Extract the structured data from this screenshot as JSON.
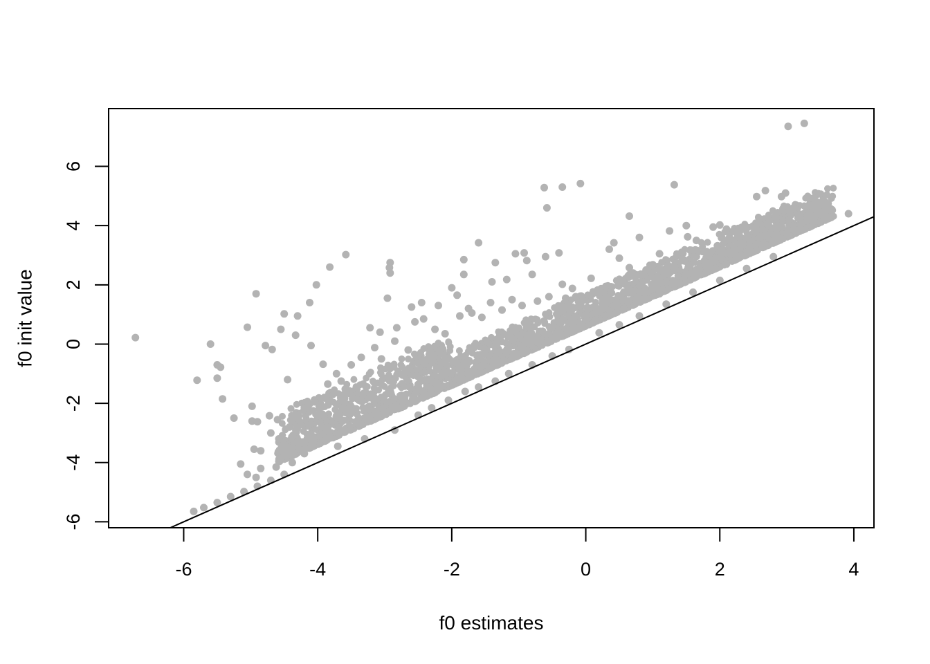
{
  "chart_data": {
    "type": "scatter",
    "title": "",
    "xlabel": "f0 estimates",
    "ylabel": "f0 init value",
    "xlim": [
      -7.12,
      4.3
    ],
    "ylim": [
      -6.2,
      7.95
    ],
    "xticks": [
      -6,
      -4,
      -2,
      0,
      2,
      4
    ],
    "yticks": [
      -6,
      -4,
      -2,
      0,
      2,
      4,
      6
    ],
    "xtick_labels": [
      "-6",
      "-4",
      "-2",
      "0",
      "2",
      "4"
    ],
    "ytick_labels": [
      "-6",
      "-4",
      "-2",
      "0",
      "2",
      "4",
      "6"
    ],
    "grid": false,
    "legend": "none",
    "point_color": "#b3b3b3",
    "reference_line": {
      "type": "identity",
      "slope": 1,
      "intercept": 0,
      "color": "#000000"
    },
    "series": [
      {
        "points": [
          [
            -6.72,
            0.22
          ],
          [
            -5.8,
            -1.22
          ],
          [
            -5.6,
            0.0
          ],
          [
            -5.5,
            -0.7
          ],
          [
            -5.45,
            -0.78
          ],
          [
            -5.5,
            -1.15
          ],
          [
            -5.42,
            -1.85
          ],
          [
            -5.25,
            -2.5
          ],
          [
            -5.05,
            0.57
          ],
          [
            -4.92,
            1.7
          ],
          [
            -4.98,
            -2.1
          ],
          [
            -4.98,
            -2.6
          ],
          [
            -4.9,
            -2.62
          ],
          [
            -4.78,
            -0.05
          ],
          [
            -4.68,
            -0.18
          ],
          [
            -4.55,
            0.5
          ],
          [
            -4.5,
            1.02
          ],
          [
            -4.45,
            -1.2
          ],
          [
            -4.3,
            0.95
          ],
          [
            -4.33,
            0.3
          ],
          [
            -4.12,
            1.4
          ],
          [
            -4.02,
            2.0
          ],
          [
            -4.1,
            -0.05
          ],
          [
            -3.92,
            -0.68
          ],
          [
            -3.82,
            2.6
          ],
          [
            -3.58,
            3.02
          ],
          [
            -3.72,
            -1.0
          ],
          [
            -3.22,
            0.55
          ],
          [
            -3.07,
            0.4
          ],
          [
            -2.96,
            1.55
          ],
          [
            -2.93,
            2.58
          ],
          [
            -2.92,
            2.75
          ],
          [
            -2.92,
            2.4
          ],
          [
            -2.82,
            0.55
          ],
          [
            -2.6,
            1.25
          ],
          [
            -2.45,
            1.4
          ],
          [
            -2.2,
            1.3
          ],
          [
            -2.0,
            1.9
          ],
          [
            -1.82,
            2.35
          ],
          [
            -1.82,
            2.85
          ],
          [
            -1.92,
            1.65
          ],
          [
            -1.75,
            1.2
          ],
          [
            -1.6,
            3.42
          ],
          [
            -1.35,
            2.75
          ],
          [
            -1.4,
            2.1
          ],
          [
            -1.18,
            2.18
          ],
          [
            -1.05,
            3.05
          ],
          [
            -0.92,
            3.08
          ],
          [
            -0.88,
            2.82
          ],
          [
            -0.8,
            2.35
          ],
          [
            -0.6,
            2.95
          ],
          [
            -0.4,
            3.08
          ],
          [
            -0.35,
            2.02
          ],
          [
            -0.2,
            1.88
          ],
          [
            -0.62,
            5.28
          ],
          [
            -0.58,
            4.6
          ],
          [
            -0.35,
            5.3
          ],
          [
            -0.08,
            5.42
          ],
          [
            0.08,
            2.22
          ],
          [
            0.42,
            3.42
          ],
          [
            0.35,
            3.2
          ],
          [
            0.5,
            2.9
          ],
          [
            0.65,
            2.58
          ],
          [
            0.65,
            4.32
          ],
          [
            0.8,
            3.6
          ],
          [
            1.1,
            3.05
          ],
          [
            1.25,
            3.82
          ],
          [
            1.32,
            5.38
          ],
          [
            1.5,
            4.0
          ],
          [
            1.52,
            3.62
          ],
          [
            1.65,
            3.5
          ],
          [
            1.9,
            3.95
          ],
          [
            2.0,
            4.02
          ],
          [
            2.1,
            3.88
          ],
          [
            2.35,
            3.88
          ],
          [
            2.45,
            3.3
          ],
          [
            2.55,
            3.85
          ],
          [
            2.55,
            4.98
          ],
          [
            2.68,
            5.18
          ],
          [
            2.92,
            4.98
          ],
          [
            2.98,
            5.1
          ],
          [
            3.02,
            7.35
          ],
          [
            3.26,
            7.45
          ],
          [
            3.35,
            4.68
          ],
          [
            3.92,
            4.4
          ],
          [
            3.02,
            3.85
          ],
          [
            2.8,
            3.5
          ],
          [
            2.6,
            3.6
          ],
          [
            2.3,
            3.2
          ],
          [
            2.1,
            2.7
          ],
          [
            1.8,
            2.45
          ],
          [
            1.4,
            2.05
          ],
          [
            1.1,
            1.7
          ],
          [
            -5.85,
            -5.65
          ],
          [
            -5.7,
            -5.52
          ],
          [
            -5.5,
            -5.35
          ],
          [
            -5.3,
            -5.15
          ],
          [
            -5.1,
            -4.98
          ],
          [
            -4.9,
            -4.8
          ],
          [
            -4.7,
            -4.6
          ],
          [
            -4.5,
            -4.4
          ],
          [
            -4.38,
            -4.0
          ],
          [
            -4.2,
            -3.7
          ],
          [
            -4.1,
            -2.7
          ],
          [
            -4.05,
            -1.95
          ],
          [
            -3.9,
            -1.8
          ],
          [
            -3.85,
            -1.35
          ],
          [
            -3.65,
            -1.25
          ],
          [
            -3.5,
            -0.7
          ],
          [
            -3.35,
            -0.45
          ],
          [
            -3.15,
            -0.12
          ],
          [
            -3.05,
            -0.5
          ],
          [
            -2.85,
            0.1
          ],
          [
            -2.65,
            -0.2
          ],
          [
            -2.55,
            0.75
          ],
          [
            -2.42,
            0.85
          ],
          [
            -2.25,
            0.5
          ],
          [
            -2.1,
            0.35
          ],
          [
            -1.88,
            0.95
          ],
          [
            -1.7,
            1.05
          ],
          [
            -1.55,
            0.9
          ],
          [
            -1.42,
            1.4
          ],
          [
            -1.25,
            1.15
          ],
          [
            -1.1,
            1.5
          ],
          [
            -0.95,
            1.3
          ],
          [
            -0.72,
            1.45
          ],
          [
            -0.55,
            1.6
          ],
          [
            -0.3,
            1.55
          ],
          [
            -0.15,
            1.6
          ],
          [
            0.15,
            1.75
          ],
          [
            0.3,
            1.95
          ],
          [
            0.55,
            2.15
          ],
          [
            0.72,
            2.3
          ],
          [
            0.9,
            2.5
          ],
          [
            1.0,
            2.68
          ],
          [
            1.2,
            2.5
          ],
          [
            -4.7,
            -3.0
          ],
          [
            -4.58,
            -3.2
          ],
          [
            -4.62,
            -4.15
          ],
          [
            -4.85,
            -4.2
          ],
          [
            -4.92,
            -4.5
          ],
          [
            -5.05,
            -4.4
          ],
          [
            -5.15,
            -4.05
          ],
          [
            -4.95,
            -3.55
          ],
          [
            -4.85,
            -3.6
          ],
          [
            -4.72,
            -2.42
          ],
          [
            -4.6,
            -2.55
          ],
          [
            -4.42,
            -2.8
          ],
          [
            -4.3,
            -2.4
          ],
          [
            -4.2,
            -2.15
          ],
          [
            -3.7,
            -3.45
          ],
          [
            -3.3,
            -3.2
          ],
          [
            -2.85,
            -2.9
          ],
          [
            -2.5,
            -2.4
          ],
          [
            -2.3,
            -2.15
          ],
          [
            -2.05,
            -1.9
          ],
          [
            -1.8,
            -1.6
          ],
          [
            -1.6,
            -1.45
          ],
          [
            -1.35,
            -1.25
          ],
          [
            -1.15,
            -1.0
          ],
          [
            -0.8,
            -0.7
          ],
          [
            -0.5,
            -0.4
          ],
          [
            -0.25,
            -0.18
          ],
          [
            0.2,
            0.38
          ],
          [
            0.5,
            0.65
          ],
          [
            0.8,
            0.95
          ],
          [
            1.2,
            1.35
          ],
          [
            1.6,
            1.75
          ],
          [
            2.0,
            2.15
          ],
          [
            2.4,
            2.55
          ],
          [
            2.8,
            2.95
          ]
        ]
      }
    ]
  }
}
